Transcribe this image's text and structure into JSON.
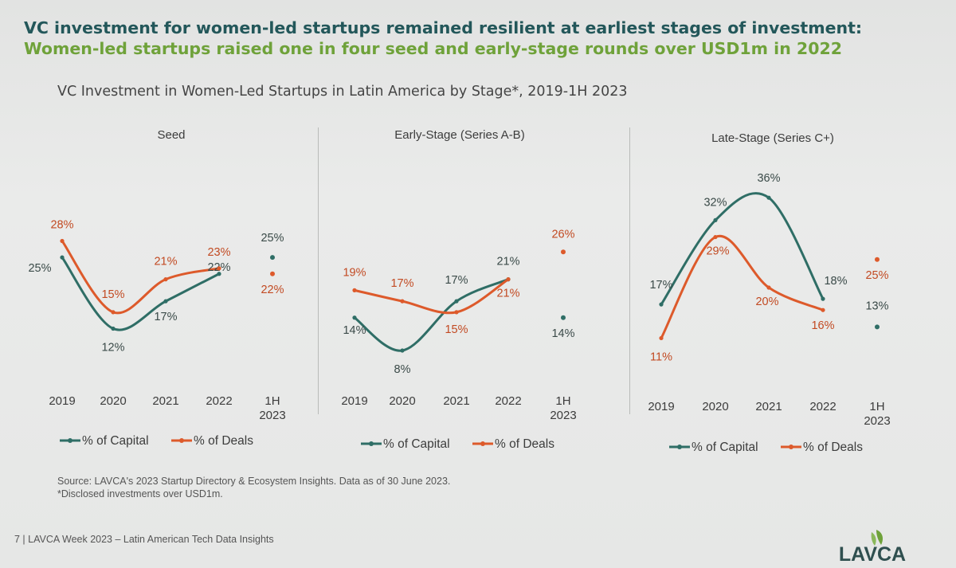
{
  "headline": {
    "part1": "VC investment for women-led startups remained resilient at earliest stages of investment: ",
    "part2": "Women-led startups raised one in four seed and early-stage rounds over USD1m in 2022"
  },
  "subtitle": "VC Investment in Women-Led Startups in Latin America by Stage*, 2019-1H 2023",
  "colors": {
    "capital": "#2f6e66",
    "deals": "#dd5a2b"
  },
  "legend": {
    "capital": "% of Capital",
    "deals": "% of Deals"
  },
  "chart_data": [
    {
      "type": "line",
      "title": "Seed",
      "categories": [
        "2019",
        "2020",
        "2021",
        "2022",
        "1H\n2023"
      ],
      "ylim": [
        0,
        40
      ],
      "series": [
        {
          "name": "% of Capital",
          "values": [
            25,
            12,
            17,
            22,
            25
          ],
          "labels": [
            "25%",
            "12%",
            "17%",
            "22%",
            "25%"
          ]
        },
        {
          "name": "% of Deals",
          "values": [
            28,
            15,
            21,
            23,
            22
          ],
          "labels": [
            "28%",
            "15%",
            "21%",
            "23%",
            "22%"
          ]
        }
      ]
    },
    {
      "type": "line",
      "title": "Early-Stage (Series A-B)",
      "categories": [
        "2019",
        "2020",
        "2021",
        "2022",
        "1H\n2023"
      ],
      "ylim": [
        0,
        40
      ],
      "series": [
        {
          "name": "% of Capital",
          "values": [
            14,
            8,
            17,
            21,
            14
          ],
          "labels": [
            "14%",
            "8%",
            "17%",
            "21%",
            "14%"
          ]
        },
        {
          "name": "% of Deals",
          "values": [
            19,
            17,
            15,
            21,
            26
          ],
          "labels": [
            "19%",
            "17%",
            "15%",
            "21%",
            "26%"
          ]
        }
      ]
    },
    {
      "type": "line",
      "title": "Late-Stage (Series C+)",
      "categories": [
        "2019",
        "2020",
        "2021",
        "2022",
        "1H\n2023"
      ],
      "ylim": [
        0,
        40
      ],
      "series": [
        {
          "name": "% of Capital",
          "values": [
            17,
            32,
            36,
            18,
            13
          ],
          "labels": [
            "17%",
            "32%",
            "36%",
            "18%",
            "13%"
          ]
        },
        {
          "name": "% of Deals",
          "values": [
            11,
            29,
            20,
            16,
            25
          ],
          "labels": [
            "11%",
            "29%",
            "20%",
            "16%",
            "25%"
          ]
        }
      ]
    }
  ],
  "source": "Source: LAVCA's 2023 Startup Directory & Ecosystem Insights. Data as of 30 June 2023.",
  "note": "*Disclosed investments over USD1m.",
  "footer": "7 | LAVCA Week 2023 – Latin American Tech Data Insights",
  "logo_text": "LAVCA"
}
